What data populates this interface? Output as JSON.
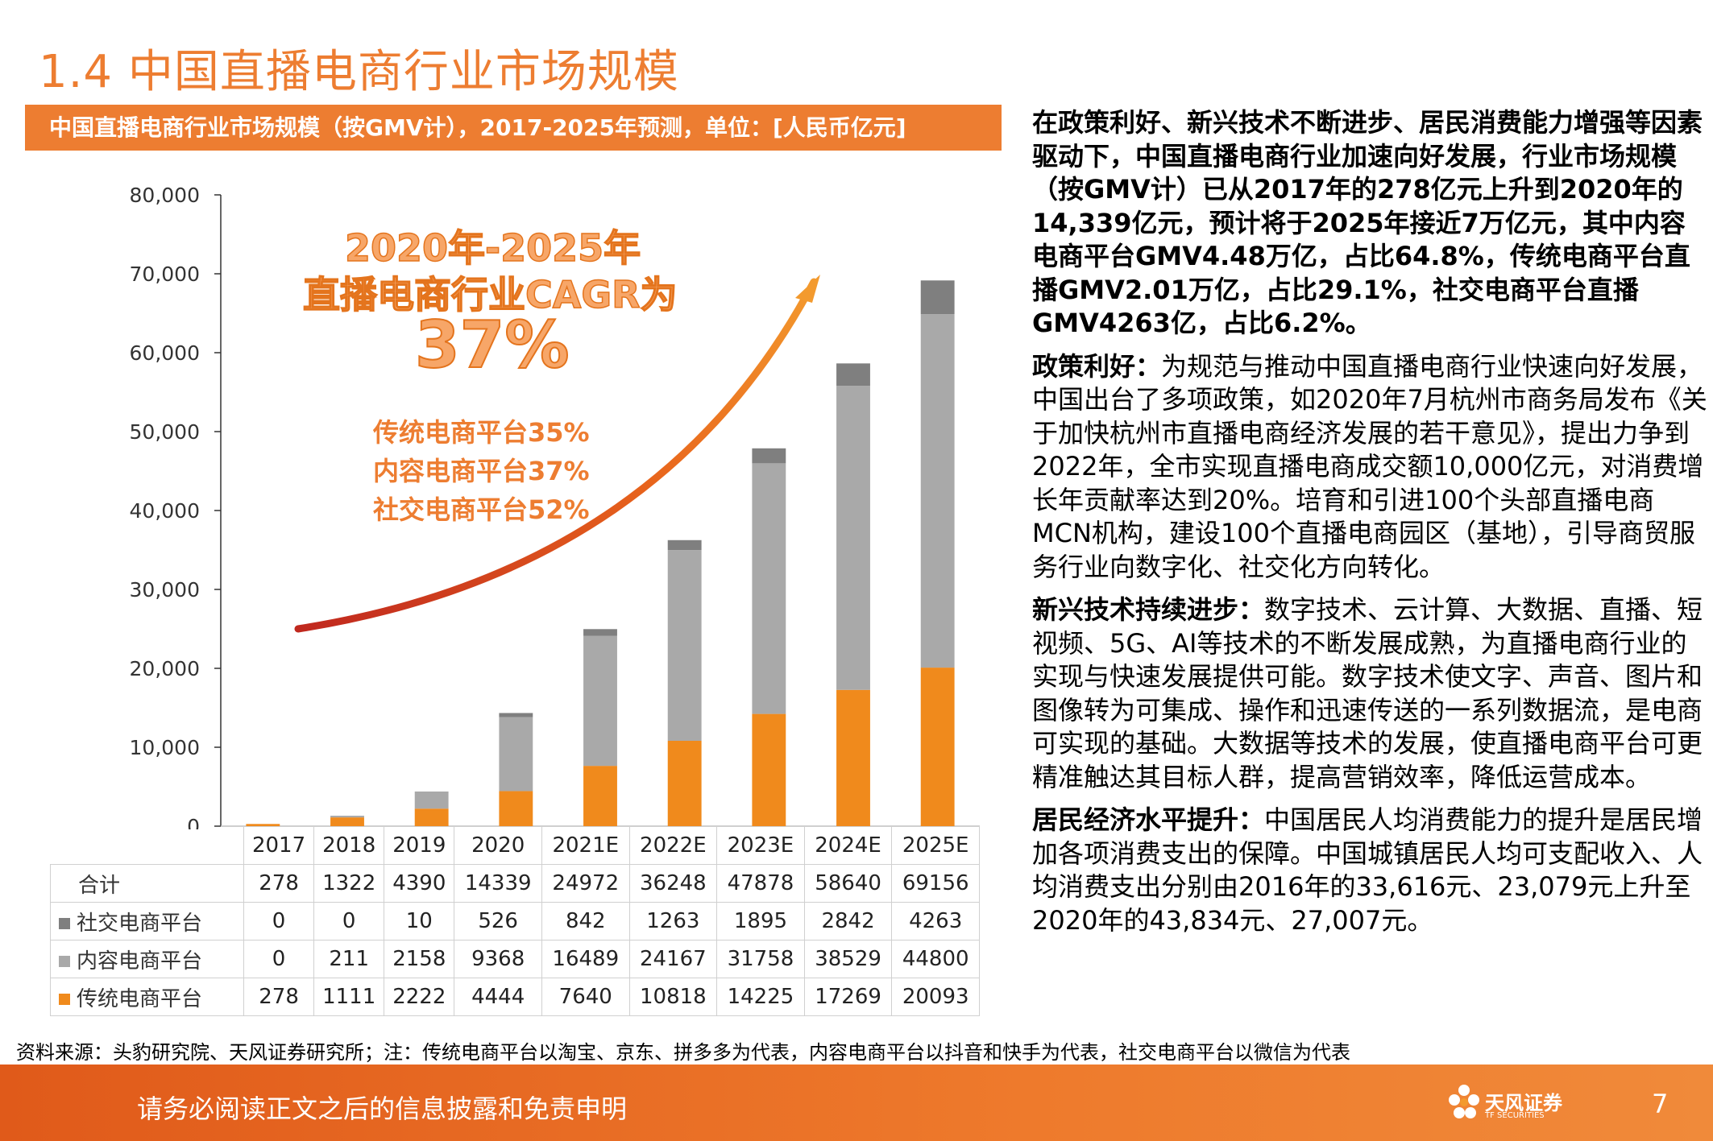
{
  "page": {
    "title": "1.4 中国直播电商行业市场规模",
    "chart_banner": "中国直播电商行业市场规模（按GMV计），2017-2025年预测，单位：[人民币亿元]",
    "cagr_line1": "2020年-2025年",
    "cagr_line2": "直播电商行业CAGR为",
    "cagr_value": "37%",
    "rates": [
      "传统电商平台35%",
      "内容电商平台37%",
      "社交电商平台52%"
    ],
    "source_note": "资料来源：头豹研究院、天风证券研究所；注：传统电商平台以淘宝、京东、拼多多为代表，内容电商平台以抖音和快手为代表，社交电商平台以微信为代表",
    "footer_text": "请务必阅读正文之后的信息披露和免责申明",
    "logo_text": "天风证券",
    "logo_sub": "TF SECURITIES",
    "page_number": "7"
  },
  "right_text": {
    "intro": "在政策利好、新兴技术不断进步、居民消费能力增强等因素驱动下，中国直播电商行业加速向好发展，行业市场规模（按GMV计）已从2017年的278亿元上升到2020年的14,339亿元，预计将于2025年接近7万亿元，其中内容电商平台GMV4.48万亿，占比64.8%，传统电商平台直播GMV2.01万亿，占比29.1%，社交电商平台直播GMV4263亿，占比6.2%。",
    "p1_title": "政策利好：",
    "p1_body": "为规范与推动中国直播电商行业快速向好发展，中国出台了多项政策，如2020年7月杭州市商务局发布《关于加快杭州市直播电商经济发展的若干意见》，提出力争到2022年，全市实现直播电商成交额10,000亿元，对消费增长年贡献率达到20%。培育和引进100个头部直播电商MCN机构，建设100个直播电商园区（基地），引导商贸服务行业向数字化、社交化方向转化。",
    "p2_title": "新兴技术持续进步：",
    "p2_body": "数字技术、云计算、大数据、直播、短视频、5G、AI等技术的不断发展成熟，为直播电商行业的实现与快速发展提供可能。数字技术使文字、声音、图片和图像转为可集成、操作和迅速传送的一系列数据流，是电商可实现的基础。大数据等技术的发展，使直播电商平台可更精准触达其目标人群，提高营销效率，降低运营成本。",
    "p3_title": "居民经济水平提升：",
    "p3_body": "中国居民人均消费能力的提升是居民增加各项消费支出的保障。中国城镇居民人均可支配收入、人均消费支出分别由2016年的33,616元、23,079元上升至2020年的43,834元、27,007元。"
  },
  "colors": {
    "accent": "#ED7D31",
    "traditional": "#F08A1C",
    "content": "#A9A9A9",
    "social": "#7F7F7F"
  },
  "chart_data": {
    "type": "bar",
    "stacked": true,
    "categories": [
      "2017",
      "2018",
      "2019",
      "2020",
      "2021E",
      "2022E",
      "2023E",
      "2024E",
      "2025E"
    ],
    "series": [
      {
        "name": "传统电商平台",
        "values": [
          278,
          1111,
          2222,
          4444,
          7640,
          10818,
          14225,
          17269,
          20093
        ]
      },
      {
        "name": "内容电商平台",
        "values": [
          0,
          211,
          2158,
          9368,
          16489,
          24167,
          31758,
          38529,
          44800
        ]
      },
      {
        "name": "社交电商平台",
        "values": [
          0,
          0,
          10,
          526,
          842,
          1263,
          1895,
          2842,
          4263
        ]
      }
    ],
    "total_label": "合计",
    "totals": [
      278,
      1322,
      4390,
      14339,
      24972,
      36248,
      47878,
      58640,
      69156
    ],
    "ylim": [
      0,
      80000
    ],
    "yticks": [
      "0",
      "10,000",
      "20,000",
      "30,000",
      "40,000",
      "50,000",
      "60,000",
      "70,000",
      "80,000"
    ],
    "grid": false,
    "legend": "table"
  }
}
